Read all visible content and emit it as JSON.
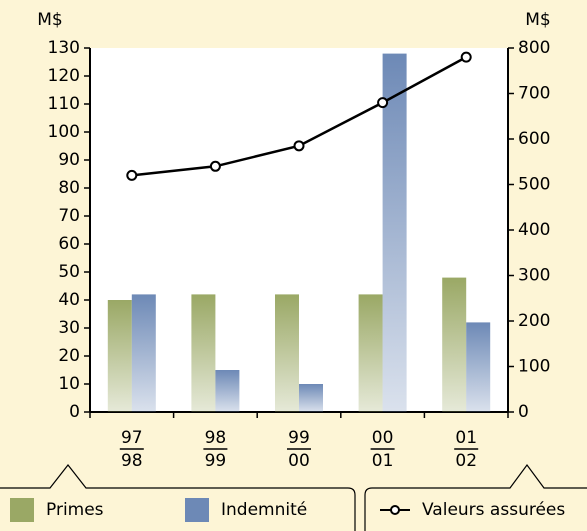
{
  "chart_data": {
    "type": "bar",
    "y_unit": "M$",
    "y2_unit": "M$",
    "categories": [
      [
        "97",
        "98"
      ],
      [
        "98",
        "99"
      ],
      [
        "99",
        "00"
      ],
      [
        "00",
        "01"
      ],
      [
        "01",
        "02"
      ]
    ],
    "series": [
      {
        "name": "Primes",
        "color": "#9aa865",
        "values": [
          40,
          42,
          42,
          42,
          48
        ]
      },
      {
        "name": "Indemnité",
        "color": "#6d89b6",
        "values": [
          42,
          15,
          10,
          128,
          32
        ]
      },
      {
        "name": "Valeurs assurées",
        "color": "#000000",
        "type": "line",
        "axis": "y2",
        "values": [
          520,
          540,
          585,
          680,
          780
        ]
      }
    ],
    "ylim": [
      0,
      130
    ],
    "yticks": [
      0,
      10,
      20,
      30,
      40,
      50,
      60,
      70,
      80,
      90,
      100,
      110,
      120,
      130
    ],
    "y2lim": [
      0,
      800
    ],
    "y2ticks": [
      0,
      100,
      200,
      300,
      400,
      500,
      600,
      700,
      800
    ]
  }
}
